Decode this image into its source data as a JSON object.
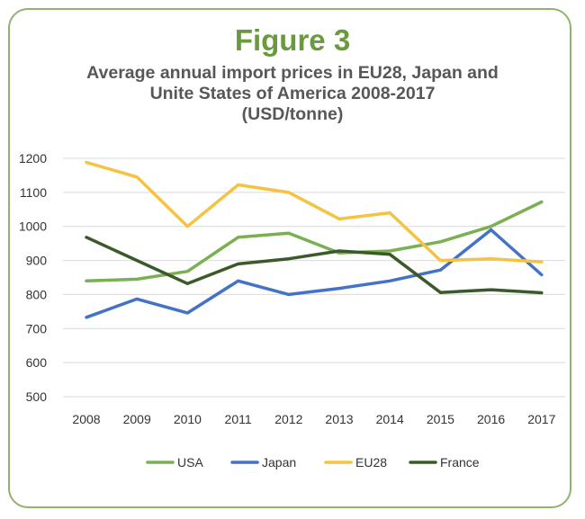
{
  "figure_label": "Figure 3",
  "chart_data": {
    "type": "line",
    "title_lines": [
      "Average annual import prices in EU28, Japan and",
      "Unite States of America 2008-2017",
      "(USD/tonne)"
    ],
    "x": [
      "2008",
      "2009",
      "2010",
      "2011",
      "2012",
      "2013",
      "2014",
      "2015",
      "2016",
      "2017"
    ],
    "ylim": [
      500,
      1200
    ],
    "yticks": [
      500,
      600,
      700,
      800,
      900,
      1000,
      1100,
      1200
    ],
    "grid": true,
    "legend_position": "bottom",
    "series": [
      {
        "name": "USA",
        "color": "#7aaf52",
        "values": [
          840,
          845,
          868,
          968,
          980,
          922,
          928,
          955,
          1000,
          1072
        ]
      },
      {
        "name": "Japan",
        "color": "#4472c4",
        "values": [
          733,
          787,
          746,
          840,
          800,
          818,
          840,
          872,
          990,
          858
        ]
      },
      {
        "name": "EU28",
        "color": "#f5c242",
        "values": [
          1188,
          1145,
          1000,
          1122,
          1100,
          1022,
          1040,
          900,
          905,
          896
        ]
      },
      {
        "name": "France",
        "color": "#3b5a2a",
        "values": [
          968,
          900,
          832,
          890,
          905,
          928,
          918,
          806,
          814,
          805
        ]
      }
    ]
  }
}
